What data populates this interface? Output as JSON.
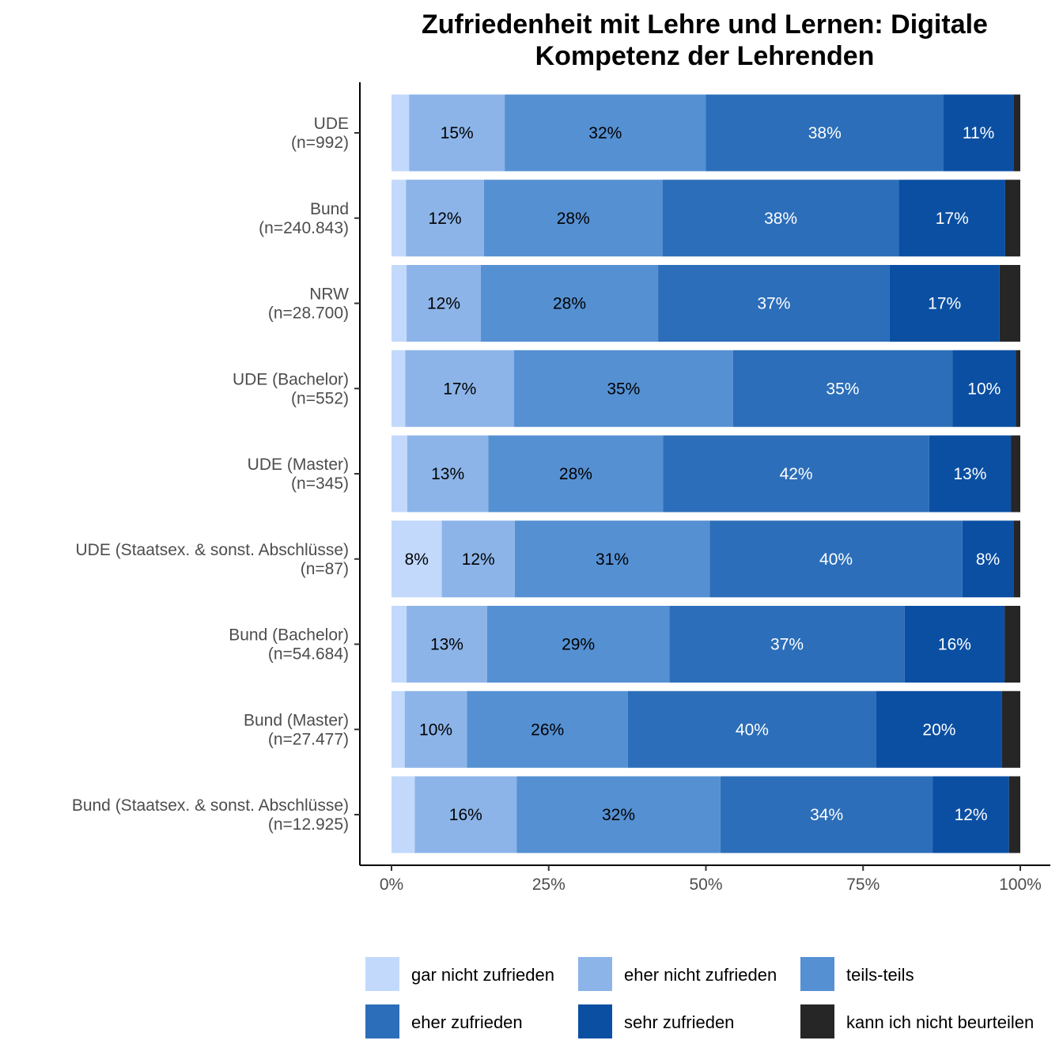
{
  "chart_data": {
    "type": "bar",
    "orientation": "horizontal",
    "stacked": true,
    "title": "Zufriedenheit mit Lehre und Lernen: Digitale Kompetenz der Lehrenden",
    "title_lines": [
      "Zufriedenheit mit Lehre und Lernen: Digitale",
      "Kompetenz der Lehrenden"
    ],
    "xlabel": "",
    "ylabel": "",
    "xlim": [
      0,
      100
    ],
    "x_ticks": [
      "0%",
      "25%",
      "50%",
      "75%",
      "100%"
    ],
    "grid": false,
    "legend_position": "bottom",
    "categories": [
      {
        "name": "UDE",
        "n": "(n=992)"
      },
      {
        "name": "Bund",
        "n": "(n=240.843)"
      },
      {
        "name": "NRW",
        "n": "(n=28.700)"
      },
      {
        "name": "UDE (Bachelor)",
        "n": "(n=552)"
      },
      {
        "name": "UDE (Master)",
        "n": "(n=345)"
      },
      {
        "name": "UDE (Staatsex. & sonst. Abschlüsse)",
        "n": "(n=87)"
      },
      {
        "name": "Bund (Bachelor)",
        "n": "(n=54.684)"
      },
      {
        "name": "Bund (Master)",
        "n": "(n=27.477)"
      },
      {
        "name": "Bund (Staatsex. & sonst. Abschlüsse)",
        "n": "(n=12.925)"
      }
    ],
    "series": [
      {
        "name": "gar nicht zufrieden",
        "color": "#c2d9fc",
        "text_color": "#000000",
        "values": [
          2.8,
          2.3,
          2.4,
          2.2,
          2.5,
          8.0,
          2.4,
          2.1,
          3.7
        ],
        "labels": [
          "",
          "",
          "",
          "",
          "",
          "8%",
          "",
          "",
          ""
        ]
      },
      {
        "name": "eher nicht zufrieden",
        "color": "#8cb4e8",
        "text_color": "#000000",
        "values": [
          15.2,
          12.4,
          11.8,
          17.3,
          12.9,
          11.6,
          12.8,
          9.9,
          16.2
        ],
        "labels": [
          "15%",
          "12%",
          "12%",
          "17%",
          "13%",
          "12%",
          "13%",
          "10%",
          "16%"
        ]
      },
      {
        "name": "teils-teils",
        "color": "#5590d2",
        "text_color": "#000000",
        "values": [
          32.0,
          28.4,
          28.2,
          34.8,
          27.8,
          31.0,
          29.0,
          25.6,
          32.4
        ],
        "labels": [
          "32%",
          "28%",
          "28%",
          "35%",
          "28%",
          "31%",
          "29%",
          "26%",
          "32%"
        ]
      },
      {
        "name": "eher zufrieden",
        "color": "#2c6eb9",
        "text_color": "#ffffff",
        "values": [
          37.8,
          37.6,
          36.8,
          34.9,
          42.3,
          40.2,
          37.4,
          39.5,
          33.8
        ],
        "labels": [
          "38%",
          "38%",
          "37%",
          "35%",
          "42%",
          "40%",
          "37%",
          "40%",
          "34%"
        ]
      },
      {
        "name": "sehr zufrieden",
        "color": "#0b4fa3",
        "text_color": "#ffffff",
        "values": [
          11.1,
          16.9,
          17.5,
          10.1,
          13.0,
          8.1,
          15.9,
          20.0,
          12.1
        ],
        "labels": [
          "11%",
          "17%",
          "17%",
          "10%",
          "13%",
          "8%",
          "16%",
          "20%",
          "12%"
        ]
      },
      {
        "name": "kann ich nicht beurteilen",
        "color": "#262626",
        "text_color": "#ffffff",
        "values": [
          1.1,
          2.4,
          3.3,
          0.7,
          1.5,
          1.1,
          2.5,
          2.9,
          1.8
        ],
        "labels": [
          "",
          "",
          "",
          "",
          "",
          "",
          "",
          "",
          ""
        ]
      }
    ]
  }
}
